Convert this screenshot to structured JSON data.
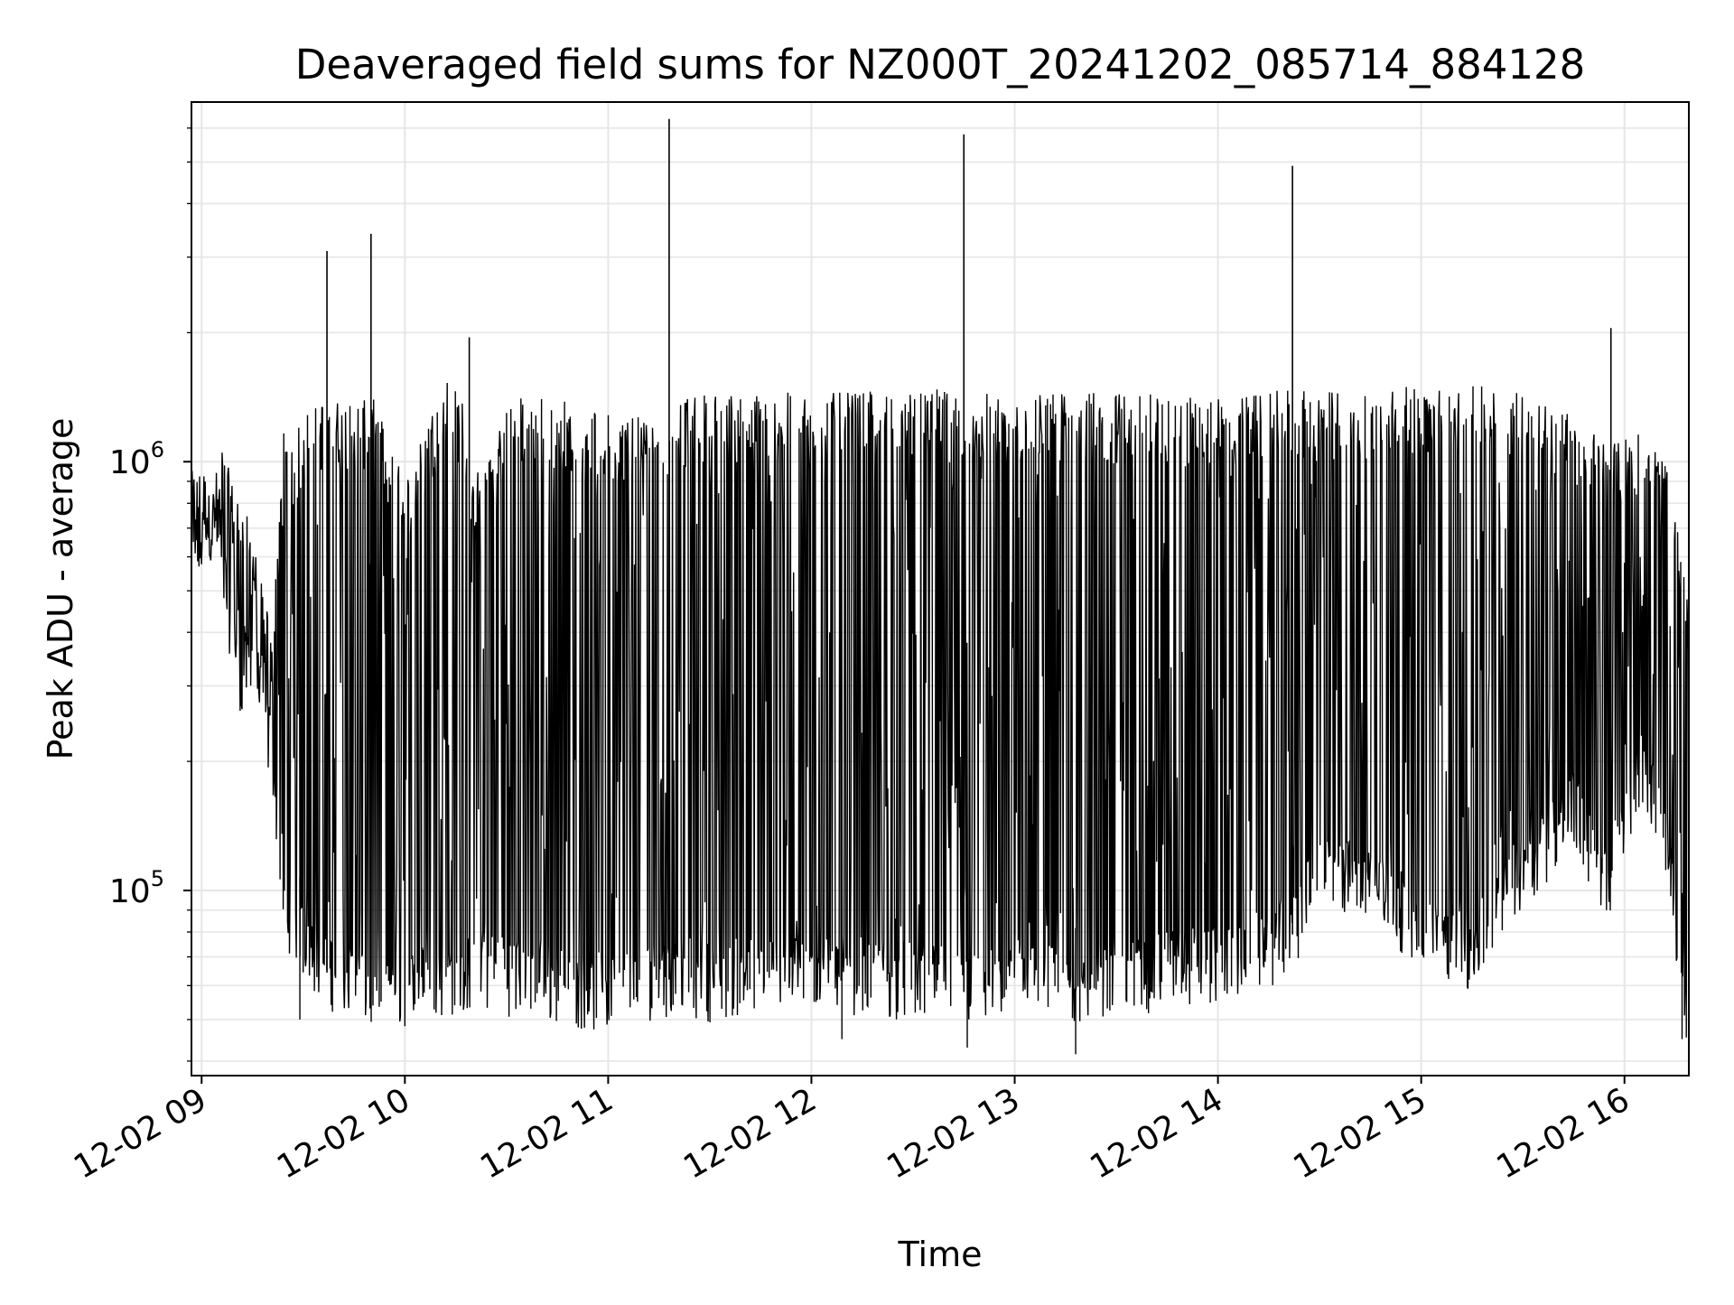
{
  "chart_data": {
    "type": "line",
    "title": "Deaveraged field sums for NZ000T_20241202_085714_884128",
    "xlabel": "Time",
    "ylabel": "Peak ADU - average",
    "yscale": "log",
    "xlim": [
      "2024-12-02 08:57",
      "2024-12-02 16:19"
    ],
    "ylim": [
      37000,
      6900000
    ],
    "grid": true,
    "legend": "none",
    "line_color": "#000000",
    "grid_color": "#e6e6e6",
    "x_ticks": [
      {
        "time": "2024-12-02 09:00",
        "label": "12-02 09"
      },
      {
        "time": "2024-12-02 10:00",
        "label": "12-02 10"
      },
      {
        "time": "2024-12-02 11:00",
        "label": "12-02 11"
      },
      {
        "time": "2024-12-02 12:00",
        "label": "12-02 12"
      },
      {
        "time": "2024-12-02 13:00",
        "label": "12-02 13"
      },
      {
        "time": "2024-12-02 14:00",
        "label": "12-02 14"
      },
      {
        "time": "2024-12-02 15:00",
        "label": "12-02 15"
      },
      {
        "time": "2024-12-02 16:00",
        "label": "12-02 16"
      }
    ],
    "y_ticks": [
      {
        "value": 100000,
        "base": "10",
        "exp": "5"
      },
      {
        "value": 1000000,
        "base": "10",
        "exp": "6"
      }
    ],
    "series": [
      {
        "x": [
          "2024-12-02 08:57",
          "2024-12-02 09:00",
          "2024-12-02 09:03",
          "2024-12-02 09:06",
          "2024-12-02 09:09",
          "2024-12-02 09:12",
          "2024-12-02 09:15",
          "2024-12-02 09:18",
          "2024-12-02 09:21",
          "2024-12-02 09:24",
          "2024-12-02 09:27",
          "2024-12-02 09:30",
          "2024-12-02 09:36",
          "2024-12-02 09:44",
          "2024-12-02 09:51",
          "2024-12-02 10:00",
          "2024-12-02 10:12",
          "2024-12-02 10:17",
          "2024-12-02 10:20",
          "2024-12-02 10:30",
          "2024-12-02 10:40",
          "2024-12-02 11:00",
          "2024-12-02 11:18",
          "2024-12-02 11:30",
          "2024-12-02 11:45",
          "2024-12-02 12:00",
          "2024-12-02 12:15",
          "2024-12-02 12:30",
          "2024-12-02 12:45",
          "2024-12-02 13:00",
          "2024-12-02 13:15",
          "2024-12-02 13:30",
          "2024-12-02 13:45",
          "2024-12-02 14:00",
          "2024-12-02 14:15",
          "2024-12-02 14:23",
          "2024-12-02 14:30",
          "2024-12-02 14:45",
          "2024-12-02 15:00",
          "2024-12-02 15:15",
          "2024-12-02 15:30",
          "2024-12-02 15:45",
          "2024-12-02 15:55",
          "2024-12-02 16:05",
          "2024-12-02 16:12",
          "2024-12-02 16:19"
        ],
        "low": [
          520000,
          600000,
          700000,
          550000,
          400000,
          300000,
          350000,
          250000,
          200000,
          100000,
          80000,
          75000,
          65000,
          60000,
          56000,
          58000,
          62000,
          60000,
          65000,
          62000,
          60000,
          56000,
          62000,
          60000,
          62000,
          64000,
          62000,
          60000,
          58000,
          60000,
          58000,
          60000,
          64000,
          66000,
          72000,
          80000,
          110000,
          100000,
          80000,
          70000,
          110000,
          150000,
          100000,
          200000,
          130000,
          50000
        ],
        "high": [
          950000,
          1000000,
          850000,
          1100000,
          900000,
          800000,
          700000,
          500000,
          400000,
          1200000,
          1100000,
          1300000,
          1400000,
          1400000,
          1400000,
          900000,
          1600000,
          1400000,
          900000,
          1400000,
          1450000,
          1300000,
          1400000,
          1450000,
          1450000,
          1450000,
          1450000,
          1500000,
          1450000,
          1450000,
          1450000,
          1450000,
          1450000,
          1400000,
          1450000,
          1500000,
          1450000,
          1500000,
          1500000,
          1500000,
          1500000,
          1300000,
          1100000,
          1200000,
          1000000,
          500000
        ]
      }
    ],
    "spikes": [
      {
        "time": "2024-12-02 09:37",
        "value": 3100000
      },
      {
        "time": "2024-12-02 09:50",
        "value": 3400000
      },
      {
        "time": "2024-12-02 10:19",
        "value": 1950000
      },
      {
        "time": "2024-12-02 11:18",
        "value": 6300000
      },
      {
        "time": "2024-12-02 12:45",
        "value": 5800000
      },
      {
        "time": "2024-12-02 14:22",
        "value": 4900000
      },
      {
        "time": "2024-12-02 15:56",
        "value": 2050000
      }
    ],
    "dips": [
      {
        "time": "2024-12-02 09:29",
        "value": 50000
      },
      {
        "time": "2024-12-02 12:09",
        "value": 45000
      },
      {
        "time": "2024-12-02 12:46",
        "value": 43000
      },
      {
        "time": "2024-12-02 13:18",
        "value": 41500
      },
      {
        "time": "2024-12-02 16:17",
        "value": 45000
      }
    ]
  }
}
